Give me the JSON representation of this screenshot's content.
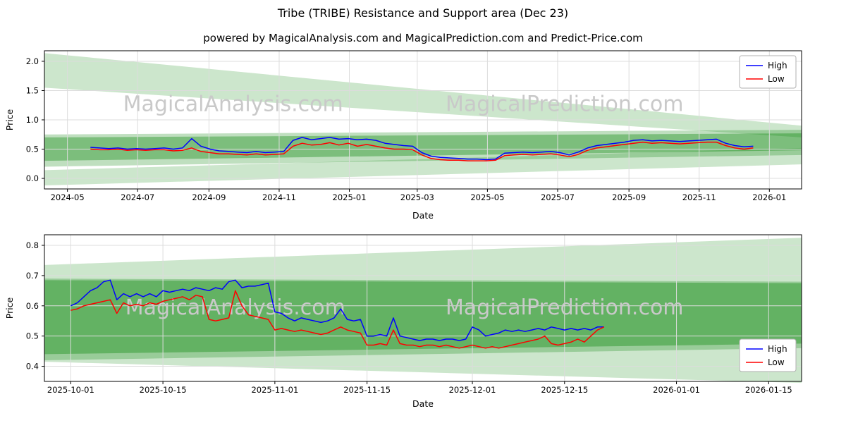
{
  "figure": {
    "title": "Tribe (TRIBE) Resistance and Support area (Dec 23)",
    "subtitle": "powered by MagicalAnalysis.com and MagicalPrediction.com and Predict-Price.com"
  },
  "colors": {
    "high_line": "#0000ff",
    "low_line": "#ff0000",
    "band": "#008000",
    "watermark": "#c9c9c9",
    "grid": "#dcdcdc",
    "axis": "#000000",
    "legend_border": "#b0b0b0"
  },
  "chart_data": [
    {
      "type": "line",
      "name": "full-history",
      "xlabel": "Date",
      "ylabel": "Price",
      "xlim": [
        -20,
        638
      ],
      "ylim": [
        -0.18,
        2.18
      ],
      "grid": true,
      "xticks": {
        "values": [
          0,
          61,
          123,
          184,
          245,
          304,
          365,
          426,
          488,
          549,
          610
        ],
        "labels": [
          "2024-05",
          "2024-07",
          "2024-09",
          "2024-11",
          "2025-01",
          "2025-03",
          "2025-05",
          "2025-07",
          "2025-09",
          "2025-11",
          "2026-01"
        ]
      },
      "yticks": {
        "values": [
          0.0,
          0.5,
          1.0,
          1.5,
          2.0
        ],
        "labels": [
          "0.0",
          "0.5",
          "1.0",
          "1.5",
          "2.0"
        ]
      },
      "watermarks": [
        {
          "text": "MagicalAnalysis.com",
          "x": 144,
          "y": 1.15
        },
        {
          "text": "MagicalPrediction.com",
          "x": 432,
          "y": 1.15
        }
      ],
      "bands": [
        {
          "left": [
            2.14,
            1.55
          ],
          "right": [
            0.9,
            0.7
          ],
          "opacity": 0.2
        },
        {
          "left": [
            0.14,
            -0.12
          ],
          "right": [
            0.52,
            0.24
          ],
          "opacity": 0.2
        },
        {
          "left": [
            0.75,
            0.2
          ],
          "right": [
            0.83,
            0.4
          ],
          "opacity": 0.25
        },
        {
          "left": [
            0.7,
            0.3
          ],
          "right": [
            0.77,
            0.48
          ],
          "opacity": 0.35
        }
      ],
      "x": [
        20,
        28,
        36,
        44,
        52,
        60,
        68,
        76,
        84,
        92,
        100,
        108,
        116,
        124,
        132,
        140,
        148,
        156,
        164,
        172,
        180,
        188,
        196,
        204,
        212,
        220,
        228,
        236,
        244,
        252,
        260,
        268,
        276,
        284,
        292,
        300,
        308,
        316,
        324,
        332,
        340,
        348,
        356,
        364,
        372,
        380,
        388,
        396,
        404,
        412,
        420,
        428,
        436,
        444,
        452,
        460,
        468,
        476,
        484,
        492,
        500,
        508,
        516,
        524,
        532,
        540,
        548,
        556,
        564,
        572,
        580,
        588,
        596
      ],
      "series": [
        {
          "name": "High",
          "color": "#0000ff",
          "values": [
            0.53,
            0.52,
            0.51,
            0.52,
            0.5,
            0.51,
            0.5,
            0.51,
            0.52,
            0.5,
            0.52,
            0.68,
            0.55,
            0.5,
            0.47,
            0.46,
            0.45,
            0.44,
            0.46,
            0.44,
            0.45,
            0.46,
            0.65,
            0.7,
            0.66,
            0.68,
            0.7,
            0.67,
            0.68,
            0.66,
            0.67,
            0.65,
            0.6,
            0.58,
            0.56,
            0.55,
            0.44,
            0.38,
            0.36,
            0.35,
            0.34,
            0.33,
            0.33,
            0.32,
            0.33,
            0.43,
            0.44,
            0.45,
            0.44,
            0.45,
            0.46,
            0.44,
            0.4,
            0.45,
            0.52,
            0.56,
            0.58,
            0.6,
            0.62,
            0.65,
            0.66,
            0.64,
            0.65,
            0.64,
            0.63,
            0.64,
            0.65,
            0.66,
            0.67,
            0.6,
            0.56,
            0.54,
            0.55
          ]
        },
        {
          "name": "Low",
          "color": "#ff0000",
          "values": [
            0.5,
            0.49,
            0.49,
            0.5,
            0.48,
            0.49,
            0.48,
            0.49,
            0.49,
            0.47,
            0.48,
            0.52,
            0.46,
            0.44,
            0.42,
            0.42,
            0.41,
            0.4,
            0.42,
            0.4,
            0.41,
            0.42,
            0.55,
            0.6,
            0.57,
            0.58,
            0.61,
            0.57,
            0.6,
            0.55,
            0.58,
            0.55,
            0.52,
            0.5,
            0.5,
            0.49,
            0.4,
            0.34,
            0.32,
            0.31,
            0.31,
            0.3,
            0.3,
            0.3,
            0.31,
            0.39,
            0.4,
            0.41,
            0.4,
            0.41,
            0.42,
            0.4,
            0.37,
            0.41,
            0.48,
            0.52,
            0.54,
            0.56,
            0.58,
            0.6,
            0.62,
            0.6,
            0.61,
            0.6,
            0.59,
            0.6,
            0.61,
            0.62,
            0.62,
            0.56,
            0.52,
            0.5,
            0.52
          ]
        }
      ],
      "legend": {
        "loc": "upper right",
        "entries": [
          {
            "label": "High",
            "color": "#0000ff"
          },
          {
            "label": "Low",
            "color": "#ff0000"
          }
        ]
      }
    },
    {
      "type": "line",
      "name": "recent-zoom",
      "xlabel": "Date",
      "ylabel": "Price",
      "xlim": [
        -4,
        111
      ],
      "ylim": [
        0.35,
        0.835
      ],
      "grid": true,
      "xticks": {
        "values": [
          0,
          14,
          31,
          45,
          61,
          75,
          92,
          106
        ],
        "labels": [
          "2025-10-01",
          "2025-10-15",
          "2025-11-01",
          "2025-11-15",
          "2025-12-01",
          "2025-12-15",
          "2026-01-01",
          "2026-01-15"
        ]
      },
      "yticks": {
        "values": [
          0.4,
          0.5,
          0.6,
          0.7,
          0.8
        ],
        "labels": [
          "0.4",
          "0.5",
          "0.6",
          "0.7",
          "0.8"
        ]
      },
      "watermarks": [
        {
          "text": "MagicalAnalysis.com",
          "x": 25,
          "y": 0.572
        },
        {
          "text": "MagicalPrediction.com",
          "x": 75,
          "y": 0.572
        }
      ],
      "bands": [
        {
          "left": [
            0.735,
            0.415
          ],
          "right": [
            0.825,
            0.345
          ],
          "opacity": 0.2
        },
        {
          "left": [
            0.69,
            0.42
          ],
          "right": [
            0.68,
            0.46
          ],
          "opacity": 0.25
        },
        {
          "left": [
            0.685,
            0.44
          ],
          "right": [
            0.675,
            0.475
          ],
          "opacity": 0.35
        }
      ],
      "x": [
        0,
        1,
        2,
        3,
        4,
        5,
        6,
        7,
        8,
        9,
        10,
        11,
        12,
        13,
        14,
        15,
        16,
        17,
        18,
        19,
        20,
        21,
        22,
        23,
        24,
        25,
        26,
        27,
        28,
        29,
        30,
        31,
        32,
        33,
        34,
        35,
        36,
        37,
        38,
        39,
        40,
        41,
        42,
        43,
        44,
        45,
        46,
        47,
        48,
        49,
        50,
        51,
        52,
        53,
        54,
        55,
        56,
        57,
        58,
        59,
        60,
        61,
        62,
        63,
        64,
        65,
        66,
        67,
        68,
        69,
        70,
        71,
        72,
        73,
        74,
        75,
        76,
        77,
        78,
        79,
        80,
        81
      ],
      "series": [
        {
          "name": "High",
          "color": "#0000ff",
          "values": [
            0.6,
            0.61,
            0.63,
            0.65,
            0.66,
            0.68,
            0.685,
            0.62,
            0.64,
            0.63,
            0.64,
            0.63,
            0.64,
            0.63,
            0.65,
            0.645,
            0.65,
            0.655,
            0.65,
            0.66,
            0.655,
            0.65,
            0.66,
            0.655,
            0.68,
            0.685,
            0.66,
            0.665,
            0.665,
            0.67,
            0.675,
            0.58,
            0.575,
            0.56,
            0.55,
            0.56,
            0.555,
            0.55,
            0.545,
            0.55,
            0.56,
            0.59,
            0.555,
            0.55,
            0.555,
            0.5,
            0.5,
            0.505,
            0.5,
            0.56,
            0.5,
            0.495,
            0.49,
            0.485,
            0.49,
            0.49,
            0.485,
            0.49,
            0.49,
            0.485,
            0.49,
            0.53,
            0.52,
            0.5,
            0.505,
            0.51,
            0.52,
            0.515,
            0.52,
            0.515,
            0.52,
            0.525,
            0.52,
            0.53,
            0.525,
            0.52,
            0.525,
            0.52,
            0.525,
            0.52,
            0.53,
            0.53
          ]
        },
        {
          "name": "Low",
          "color": "#ff0000",
          "values": [
            0.585,
            0.59,
            0.6,
            0.605,
            0.61,
            0.615,
            0.62,
            0.575,
            0.61,
            0.6,
            0.605,
            0.6,
            0.61,
            0.605,
            0.615,
            0.62,
            0.625,
            0.63,
            0.62,
            0.635,
            0.63,
            0.555,
            0.55,
            0.555,
            0.56,
            0.65,
            0.6,
            0.57,
            0.565,
            0.56,
            0.555,
            0.52,
            0.525,
            0.52,
            0.515,
            0.52,
            0.515,
            0.51,
            0.505,
            0.51,
            0.52,
            0.53,
            0.52,
            0.515,
            0.51,
            0.47,
            0.47,
            0.475,
            0.47,
            0.52,
            0.475,
            0.47,
            0.47,
            0.465,
            0.47,
            0.47,
            0.465,
            0.47,
            0.465,
            0.46,
            0.465,
            0.47,
            0.465,
            0.46,
            0.465,
            0.46,
            0.465,
            0.47,
            0.475,
            0.48,
            0.485,
            0.49,
            0.5,
            0.475,
            0.47,
            0.475,
            0.48,
            0.49,
            0.48,
            0.5,
            0.52,
            0.53
          ]
        }
      ],
      "legend": {
        "loc": "lower right",
        "entries": [
          {
            "label": "High",
            "color": "#0000ff"
          },
          {
            "label": "Low",
            "color": "#ff0000"
          }
        ]
      }
    }
  ]
}
